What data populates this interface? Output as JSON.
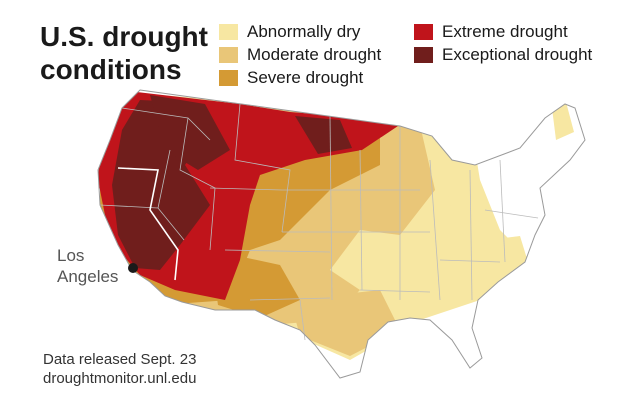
{
  "title": {
    "line1": "U.S. drought",
    "line2": "conditions"
  },
  "legend": [
    {
      "label": "Abnormally dry",
      "color": "#f7e7a2"
    },
    {
      "label": "Moderate drought",
      "color": "#e9c678"
    },
    {
      "label": "Severe drought",
      "color": "#d49a34"
    },
    {
      "label": "Extreme drought",
      "color": "#c0141b"
    },
    {
      "label": "Exceptional drought",
      "color": "#701e1c"
    }
  ],
  "city": {
    "name_line1": "Los",
    "name_line2": "Angeles"
  },
  "footer": {
    "line1": "Data released Sept. 23",
    "line2": "droughtmonitor.unl.edu"
  },
  "colors": {
    "land": "#ffffff",
    "borders": "#bbbbbb",
    "outline": "#9a9a9a",
    "city_marker": "#1a1a1a"
  }
}
